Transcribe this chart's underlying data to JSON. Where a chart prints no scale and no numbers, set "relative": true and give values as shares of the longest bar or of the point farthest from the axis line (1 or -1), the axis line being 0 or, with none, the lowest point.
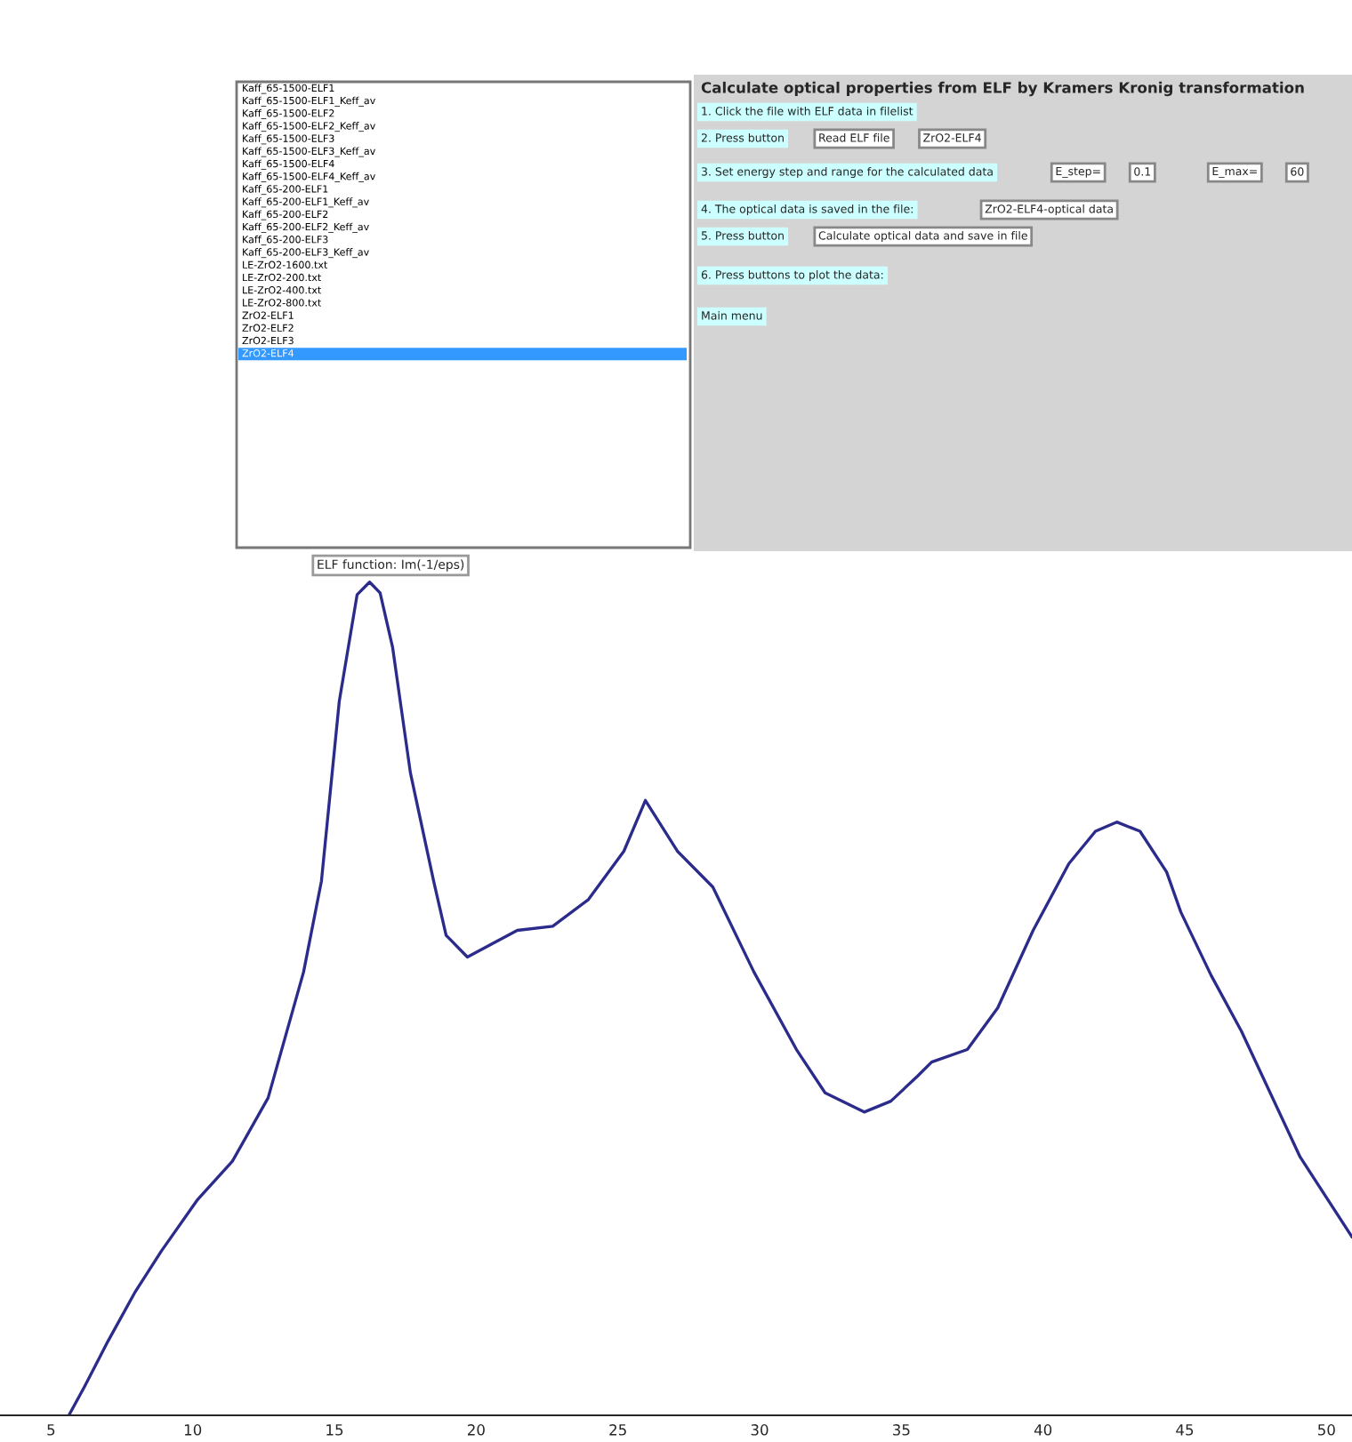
{
  "chart_data": {
    "type": "line",
    "title": "ELF function: Im(-1/eps)",
    "relative": true,
    "x": [
      5.63,
      6.19,
      7.01,
      7.95,
      8.89,
      10.15,
      11.4,
      12.66,
      13.91,
      14.54,
      15.17,
      15.8,
      16.24,
      16.61,
      17.05,
      17.68,
      18.5,
      18.94,
      19.69,
      20.51,
      21.45,
      22.7,
      23.96,
      25.21,
      25.97,
      27.1,
      28.35,
      29.8,
      31.3,
      32.31,
      33.69,
      34.63,
      35.57,
      36.07,
      37.33,
      38.4,
      39.65,
      40.91,
      41.85,
      42.6,
      43.42,
      44.36,
      44.86,
      45.93,
      47.0,
      49.07,
      50.9
    ],
    "series": [
      {
        "color": "#2b2b8c",
        "values": [
          0,
          0.035,
          0.089,
          0.147,
          0.197,
          0.258,
          0.305,
          0.381,
          0.532,
          0.641,
          0.857,
          0.985,
          1.0,
          0.987,
          0.922,
          0.771,
          0.641,
          0.576,
          0.55,
          0.565,
          0.582,
          0.587,
          0.619,
          0.677,
          0.738,
          0.677,
          0.634,
          0.532,
          0.439,
          0.387,
          0.364,
          0.377,
          0.407,
          0.424,
          0.439,
          0.489,
          0.582,
          0.662,
          0.701,
          0.712,
          0.701,
          0.652,
          0.604,
          0.528,
          0.461,
          0.31,
          0.214
        ]
      }
    ],
    "xlim": [
      3.2,
      50.9
    ],
    "xticks": [
      5,
      10,
      15,
      20,
      25,
      30,
      35,
      40,
      45,
      50
    ],
    "tick_labels": "x",
    "grid": false,
    "marker": "none",
    "line_style": "solid",
    "annotations": [
      "Kaff_65-1500-ELF1",
      "Kaff_65-1500-ELF1_Keff_av",
      "Kaff_65-1500-ELF2",
      "Kaff_65-1500-ELF2_Keff_av",
      "Kaff_65-1500-ELF3",
      "Kaff_65-1500-ELF3_Keff_av",
      "Kaff_65-1500-ELF4",
      "Kaff_65-1500-ELF4_Keff_av",
      "Kaff_65-200-ELF1",
      "Kaff_65-200-ELF1_Keff_av",
      "Kaff_65-200-ELF2",
      "Kaff_65-200-ELF2_Keff_av",
      "Kaff_65-200-ELF3",
      "Kaff_65-200-ELF3_Keff_av",
      "LE-ZrO2-1600.txt",
      "LE-ZrO2-200.txt",
      "LE-ZrO2-400.txt",
      "LE-ZrO2-800.txt",
      "ZrO2-ELF1",
      "ZrO2-ELF2",
      "ZrO2-ELF3",
      "ZrO2-ELF4",
      "Calculate optical properties from ELF by Kramers Kronig transformation",
      "1. Click the file with ELF data in filelist",
      "2. Press button",
      "Read ELF file",
      "ZrO2-ELF4",
      "3. Set energy step and range for the calculated data",
      "E_step=",
      "0.1",
      "E_max=",
      "60",
      "4. The optical data is saved in the file:",
      "ZrO2-ELF4-optical data",
      "5. Press button",
      "Calculate optical data and save in file",
      "6. Press buttons to plot the data:",
      "Main menu"
    ]
  }
}
